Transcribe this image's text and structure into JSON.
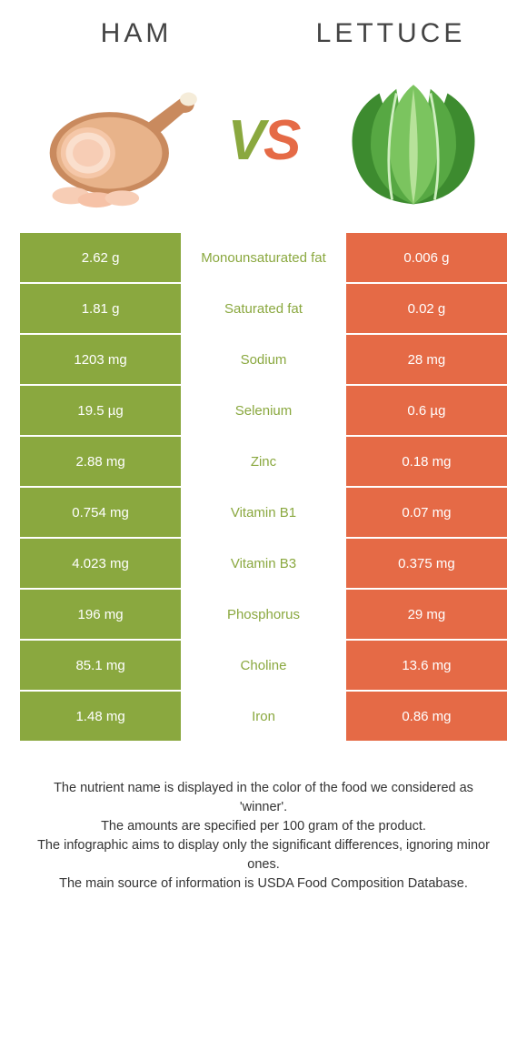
{
  "food_left": {
    "name": "Ham",
    "color": "#8aa83f",
    "vs_color": "#8aa83f"
  },
  "food_right": {
    "name": "Lettuce",
    "color": "#e56a46"
  },
  "vs_text": "VS",
  "rows": [
    {
      "left": "2.62 g",
      "label": "Monounsaturated fat",
      "right": "0.006 g",
      "winner": "left"
    },
    {
      "left": "1.81 g",
      "label": "Saturated fat",
      "right": "0.02 g",
      "winner": "left"
    },
    {
      "left": "1203 mg",
      "label": "Sodium",
      "right": "28 mg",
      "winner": "left"
    },
    {
      "left": "19.5 µg",
      "label": "Selenium",
      "right": "0.6 µg",
      "winner": "left"
    },
    {
      "left": "2.88 mg",
      "label": "Zinc",
      "right": "0.18 mg",
      "winner": "left"
    },
    {
      "left": "0.754 mg",
      "label": "Vitamin B1",
      "right": "0.07 mg",
      "winner": "left"
    },
    {
      "left": "4.023 mg",
      "label": "Vitamin B3",
      "right": "0.375 mg",
      "winner": "left"
    },
    {
      "left": "196 mg",
      "label": "Phosphorus",
      "right": "29 mg",
      "winner": "left"
    },
    {
      "left": "85.1 mg",
      "label": "Choline",
      "right": "13.6 mg",
      "winner": "left"
    },
    {
      "left": "1.48 mg",
      "label": "Iron",
      "right": "0.86 mg",
      "winner": "left"
    }
  ],
  "footnotes": [
    "The nutrient name is displayed in the color of the food we considered as 'winner'.",
    "The amounts are specified per 100 gram of the product.",
    "The infographic aims to display only the significant differences, ignoring minor ones.",
    "The main source of information is USDA Food Composition Database."
  ]
}
